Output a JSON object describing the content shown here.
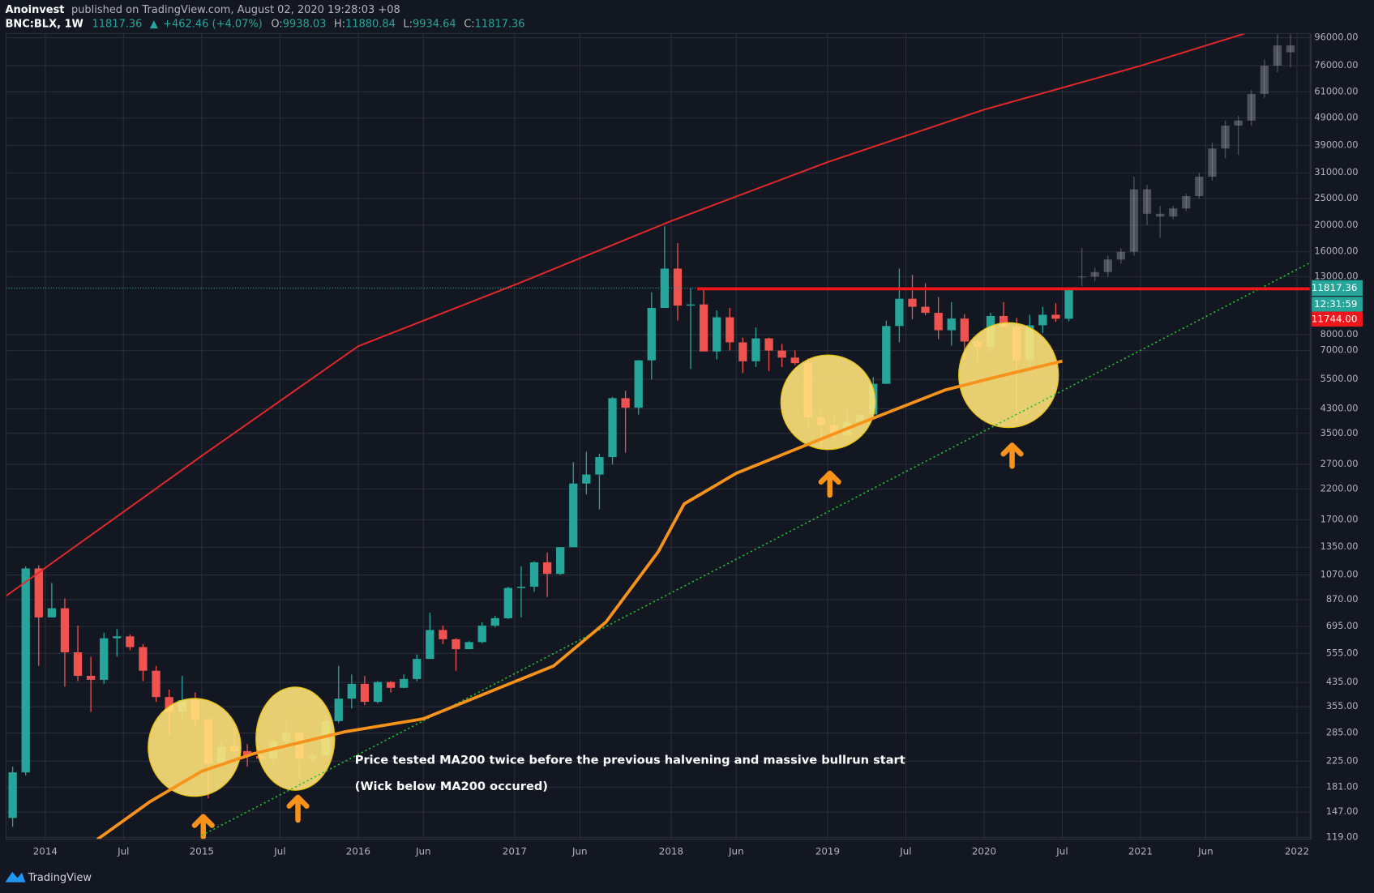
{
  "header": {
    "author": "Anoinvest",
    "published": "published on TradingView.com, August 02, 2020 19:28:03 +08",
    "symbol": "BNC:BLX, 1W",
    "last": "11817.36",
    "change": "+462.46 (+4.07%)",
    "ohlc": [
      {
        "label": "O:",
        "value": "9938.03"
      },
      {
        "label": "H:",
        "value": "11880.84"
      },
      {
        "label": "L:",
        "value": "9934.64"
      },
      {
        "label": "C:",
        "value": "11817.36"
      }
    ]
  },
  "brand": "TradingView",
  "chart_data": {
    "type": "candlestick",
    "log": true,
    "grid": true,
    "up_color": "#26a69a",
    "down_color": "#ef5350",
    "xlim": [
      "2013-10",
      "2022-02"
    ],
    "ylim": [
      117,
      99500
    ],
    "xticks": [
      {
        "value": "2014-01",
        "label": "2014"
      },
      {
        "value": "2014-07",
        "label": "Jul"
      },
      {
        "value": "2015-01",
        "label": "2015"
      },
      {
        "value": "2015-07",
        "label": "Jul"
      },
      {
        "value": "2016-01",
        "label": "2016"
      },
      {
        "value": "2016-06",
        "label": "Jun"
      },
      {
        "value": "2017-01",
        "label": "2017"
      },
      {
        "value": "2017-06",
        "label": "Jun"
      },
      {
        "value": "2018-01",
        "label": "2018"
      },
      {
        "value": "2018-06",
        "label": "Jun"
      },
      {
        "value": "2019-01",
        "label": "2019"
      },
      {
        "value": "2019-07",
        "label": "Jul"
      },
      {
        "value": "2020-01",
        "label": "2020"
      },
      {
        "value": "2020-07",
        "label": "Jul"
      },
      {
        "value": "2021-01",
        "label": "2021"
      },
      {
        "value": "2021-06",
        "label": "Jun"
      },
      {
        "value": "2022-01",
        "label": "2022"
      }
    ],
    "yticks": [
      {
        "value": 96000,
        "label": "96000.00"
      },
      {
        "value": 76000,
        "label": "76000.00"
      },
      {
        "value": 61000,
        "label": "61000.00"
      },
      {
        "value": 49000,
        "label": "49000.00"
      },
      {
        "value": 39000,
        "label": "39000.00"
      },
      {
        "value": 31000,
        "label": "31000.00"
      },
      {
        "value": 25000,
        "label": "25000.00"
      },
      {
        "value": 20000,
        "label": "20000.00"
      },
      {
        "value": 16000,
        "label": "16000.00"
      },
      {
        "value": 13000,
        "label": "13000.00"
      },
      {
        "value": 8000,
        "label": "8000.00"
      },
      {
        "value": 7000,
        "label": "7000.00"
      },
      {
        "value": 5500,
        "label": "5500.00"
      },
      {
        "value": 4300,
        "label": "4300.00"
      },
      {
        "value": 3500,
        "label": "3500.00"
      },
      {
        "value": 2700,
        "label": "2700.00"
      },
      {
        "value": 2200,
        "label": "2200.00"
      },
      {
        "value": 1700,
        "label": "1700.00"
      },
      {
        "value": 1350,
        "label": "1350.00"
      },
      {
        "value": 1070,
        "label": "1070.00"
      },
      {
        "value": 870,
        "label": "870.00"
      },
      {
        "value": 695,
        "label": "695.00"
      },
      {
        "value": 555,
        "label": "555.00"
      },
      {
        "value": 435,
        "label": "435.00"
      },
      {
        "value": 355,
        "label": "355.00"
      },
      {
        "value": 285,
        "label": "285.00"
      },
      {
        "value": 225,
        "label": "225.00"
      },
      {
        "value": 181,
        "label": "181.00"
      },
      {
        "value": 147,
        "label": "147.00"
      },
      {
        "value": 119,
        "label": "119.00"
      }
    ],
    "x": [
      "2013-10",
      "2013-11",
      "2013-12",
      "2014-01",
      "2014-02",
      "2014-03",
      "2014-04",
      "2014-05",
      "2014-06",
      "2014-07",
      "2014-08",
      "2014-09",
      "2014-10",
      "2014-11",
      "2014-12",
      "2015-01",
      "2015-02",
      "2015-03",
      "2015-04",
      "2015-05",
      "2015-06",
      "2015-07",
      "2015-08",
      "2015-09",
      "2015-10",
      "2015-11",
      "2015-12",
      "2016-01",
      "2016-02",
      "2016-03",
      "2016-04",
      "2016-05",
      "2016-06",
      "2016-07",
      "2016-08",
      "2016-09",
      "2016-10",
      "2016-11",
      "2016-12",
      "2017-01",
      "2017-02",
      "2017-03",
      "2017-04",
      "2017-05",
      "2017-06",
      "2017-07",
      "2017-08",
      "2017-09",
      "2017-10",
      "2017-11",
      "2017-12",
      "2018-01",
      "2018-02",
      "2018-03",
      "2018-04",
      "2018-05",
      "2018-06",
      "2018-07",
      "2018-08",
      "2018-09",
      "2018-10",
      "2018-11",
      "2018-12",
      "2019-01",
      "2019-02",
      "2019-03",
      "2019-04",
      "2019-05",
      "2019-06",
      "2019-07",
      "2019-08",
      "2019-09",
      "2019-10",
      "2019-11",
      "2019-12",
      "2020-01",
      "2020-02",
      "2020-03",
      "2020-04",
      "2020-05",
      "2020-06",
      "2020-07"
    ],
    "open": [
      140,
      205,
      1130,
      750,
      810,
      560,
      460,
      445,
      630,
      640,
      585,
      480,
      385,
      340,
      375,
      320,
      220,
      255,
      245,
      235,
      230,
      265,
      285,
      230,
      236,
      315,
      380,
      430,
      370,
      437,
      416,
      448,
      530,
      675,
      625,
      575,
      610,
      700,
      745,
      960,
      970,
      1190,
      1080,
      1350,
      2300,
      2480,
      2870,
      4700,
      4340,
      6450,
      10000,
      13900,
      10200,
      10300,
      6950,
      9250,
      7500,
      6400,
      7750,
      7000,
      6600,
      6300,
      4000,
      3750,
      3450,
      3850,
      4100,
      5300,
      8600,
      10800,
      10100,
      9600,
      8300,
      9150,
      7550,
      7200,
      9350,
      8550,
      6450,
      8650,
      9450,
      9140
    ],
    "high": [
      215,
      1150,
      1160,
      1000,
      880,
      700,
      540,
      660,
      680,
      650,
      600,
      500,
      410,
      460,
      400,
      320,
      265,
      300,
      260,
      250,
      270,
      320,
      285,
      245,
      330,
      500,
      465,
      460,
      440,
      440,
      465,
      550,
      780,
      700,
      630,
      615,
      720,
      760,
      970,
      1150,
      1200,
      1290,
      1350,
      2750,
      3000,
      2950,
      4750,
      5000,
      6470,
      11400,
      19800,
      17200,
      11800,
      11700,
      9800,
      10000,
      7800,
      8500,
      7800,
      7400,
      7000,
      6550,
      4200,
      4100,
      4200,
      4100,
      5600,
      9000,
      13900,
      13200,
      12300,
      10950,
      10500,
      9500,
      7700,
      9600,
      10500,
      9200,
      9450,
      10100,
      10400,
      11880
    ],
    "low": [
      130,
      200,
      500,
      750,
      420,
      440,
      340,
      430,
      540,
      570,
      440,
      370,
      280,
      320,
      300,
      165,
      215,
      240,
      215,
      225,
      220,
      255,
      195,
      225,
      235,
      310,
      350,
      360,
      365,
      400,
      415,
      440,
      530,
      600,
      480,
      590,
      605,
      690,
      740,
      750,
      930,
      890,
      1070,
      1350,
      2100,
      1850,
      2700,
      2980,
      4100,
      5500,
      10000,
      9000,
      6000,
      7000,
      6500,
      7000,
      5800,
      6100,
      5900,
      6100,
      6200,
      3600,
      3150,
      3350,
      3400,
      3700,
      4050,
      5300,
      7500,
      9100,
      9400,
      7700,
      7300,
      6500,
      6400,
      6900,
      8500,
      3850,
      6150,
      8100,
      8900,
      8950
    ],
    "close": [
      205,
      1130,
      750,
      810,
      560,
      460,
      445,
      630,
      640,
      585,
      480,
      385,
      340,
      375,
      320,
      220,
      255,
      245,
      235,
      230,
      265,
      285,
      230,
      236,
      315,
      380,
      430,
      370,
      437,
      416,
      448,
      530,
      675,
      625,
      575,
      610,
      700,
      745,
      960,
      970,
      1190,
      1080,
      1350,
      2300,
      2480,
      2870,
      4700,
      4340,
      6450,
      10000,
      13900,
      10200,
      10300,
      6950,
      9250,
      7500,
      6400,
      7750,
      7000,
      6600,
      6300,
      4000,
      3750,
      3450,
      3850,
      4100,
      5300,
      8600,
      10800,
      10100,
      9600,
      8300,
      9150,
      7550,
      7200,
      9350,
      8550,
      6450,
      8650,
      9450,
      9140,
      11817.36
    ],
    "projection": {
      "color": "#9598a1",
      "x": [
        "2020-08",
        "2020-09",
        "2020-10",
        "2020-11",
        "2020-12",
        "2021-01",
        "2021-02",
        "2021-03",
        "2021-04",
        "2021-05",
        "2021-06",
        "2021-07",
        "2021-08",
        "2021-09",
        "2021-10",
        "2021-11",
        "2021-12"
      ],
      "open": [
        13000,
        13000,
        13500,
        15000,
        16000,
        27000,
        22000,
        21500,
        23000,
        25500,
        30000,
        38000,
        46000,
        48000,
        60000,
        76000,
        90000
      ],
      "high": [
        16500,
        14000,
        15500,
        16500,
        30000,
        28000,
        23500,
        23500,
        26000,
        31000,
        40000,
        48000,
        50000,
        62000,
        80000,
        99000,
        99000
      ],
      "low": [
        12000,
        12500,
        13000,
        14500,
        15500,
        20000,
        18000,
        21000,
        22500,
        25000,
        29000,
        35000,
        36000,
        46000,
        58000,
        72000,
        75000
      ],
      "close": [
        13000,
        13500,
        15000,
        16000,
        27000,
        22000,
        21500,
        23000,
        25500,
        30000,
        38000,
        46000,
        48000,
        60000,
        76000,
        90000,
        85000
      ]
    },
    "ma_line": {
      "color": "#f7931a",
      "x": [
        "2014-05",
        "2014-09",
        "2015-01",
        "2015-05",
        "2015-12",
        "2016-06",
        "2016-11",
        "2017-04",
        "2017-08",
        "2017-12",
        "2018-02",
        "2018-06",
        "2018-11",
        "2019-04",
        "2019-10",
        "2020-02",
        "2020-07"
      ],
      "values": [
        117,
        160,
        207,
        240,
        288,
        321,
        401,
        500,
        721,
        1297,
        1940,
        2507,
        3126,
        3890,
        5030,
        5620,
        6410
      ]
    },
    "top_curve": {
      "color": "#e5282a",
      "x": [
        "2013-10",
        "2015-01",
        "2016-01",
        "2017-01",
        "2018-01",
        "2019-01",
        "2020-01",
        "2021-01",
        "2021-09"
      ],
      "values": [
        898,
        2900,
        7260,
        12130,
        20700,
        33900,
        52600,
        75900,
        99500
      ]
    },
    "trendline": {
      "color": "#22c332",
      "x": [
        "2015-01",
        "2022-02"
      ],
      "values": [
        121,
        14600
      ]
    },
    "resistance": {
      "color": "#f0161b",
      "x": "2018-03",
      "value": 11744,
      "value_label": "11744.00"
    },
    "last_price": {
      "color": "#26a69a",
      "value": 11817.36,
      "countdown": "12:31:59"
    },
    "annotations": [
      "Price tested MA200 twice before the previous halvening and massive bullrun start",
      "(Wick below MA200 occured)"
    ]
  }
}
